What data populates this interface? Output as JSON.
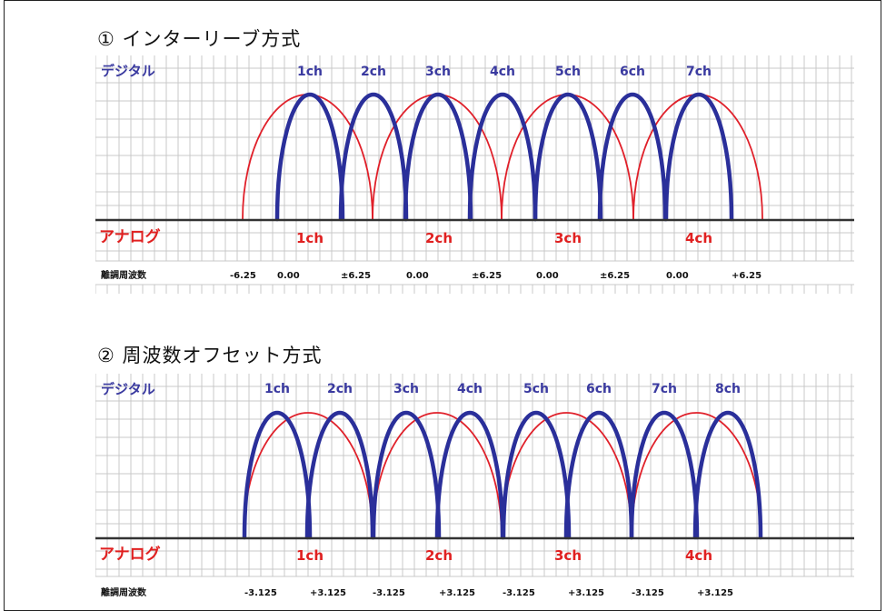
{
  "sections": [
    {
      "title": "① インターリーブ方式",
      "digital_label": "デジタル",
      "analog_label": "アナログ",
      "freq_label": "離調周波数",
      "digital_channels": [
        "1ch",
        "2ch",
        "3ch",
        "4ch",
        "5ch",
        "6ch",
        "7ch"
      ],
      "analog_channels": [
        "1ch",
        "2ch",
        "3ch",
        "4ch"
      ],
      "freq_values": [
        "-6.25",
        "0.00",
        "±6.25",
        "0.00",
        "±6.25",
        "0.00",
        "±6.25",
        "0.00",
        "+6.25"
      ]
    },
    {
      "title": "② 周波数オフセット方式",
      "digital_label": "デジタル",
      "analog_label": "アナログ",
      "freq_label": "離調周波数",
      "digital_channels": [
        "1ch",
        "2ch",
        "3ch",
        "4ch",
        "5ch",
        "6ch",
        "7ch",
        "8ch"
      ],
      "analog_channels": [
        "1ch",
        "2ch",
        "3ch",
        "4ch"
      ],
      "freq_values": [
        "-3.125",
        "+3.125",
        "-3.125",
        "+3.125",
        "-3.125",
        "+3.125",
        "-3.125",
        "+3.125"
      ]
    }
  ],
  "colors": {
    "digital": "#2a2f9a",
    "analog": "#e0202a",
    "digital_text": "#3a3aa0",
    "analog_text": "#e02020",
    "grid": "#c9c9c9",
    "axis": "#333333"
  }
}
